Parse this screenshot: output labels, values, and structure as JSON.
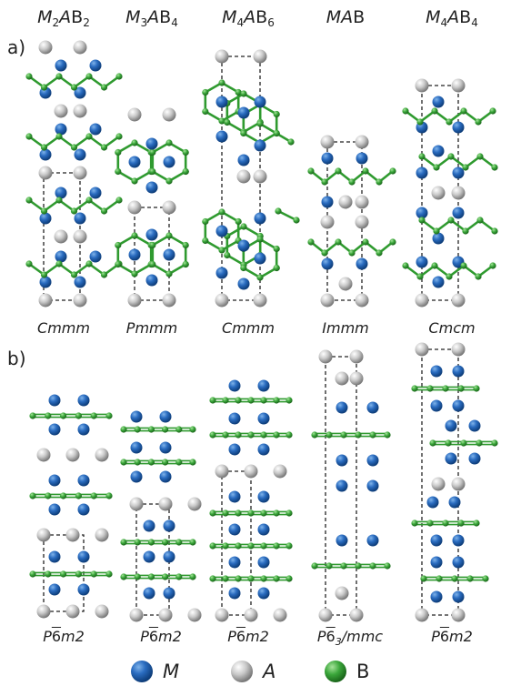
{
  "formulas": [
    {
      "M": "M",
      "msub": "2",
      "A": "A",
      "B": "B",
      "bsub": "2"
    },
    {
      "M": "M",
      "msub": "3",
      "A": "A",
      "B": "B",
      "bsub": "4"
    },
    {
      "M": "M",
      "msub": "4",
      "A": "A",
      "B": "B",
      "bsub": "6"
    },
    {
      "M": "M",
      "msub": "",
      "A": "A",
      "B": "B",
      "bsub": ""
    },
    {
      "M": "M",
      "msub": "4",
      "A": "A",
      "B": "B",
      "bsub": "4"
    }
  ],
  "panels": {
    "a": "a)",
    "b": "b)"
  },
  "space_groups_a": [
    "Cmmm",
    "Pmmm",
    "Cmmm",
    "Immm",
    "Cmcm"
  ],
  "space_groups_b": [
    {
      "pre": "P",
      "bar": "6",
      "post": "m2"
    },
    {
      "pre": "P",
      "bar": "6",
      "post": "m2"
    },
    {
      "pre": "P",
      "bar": "6",
      "post": "m2"
    },
    {
      "pre": "P",
      "bar": "6",
      "sub": "3",
      "post": "/mmc"
    },
    {
      "pre": "P",
      "bar": "6",
      "post": "m2"
    }
  ],
  "legend": [
    {
      "symbol": "M",
      "color": "#1f5fae"
    },
    {
      "symbol": "A",
      "color": "#9a9a9a"
    },
    {
      "symbol": "B",
      "color": "#2f9a2f"
    }
  ],
  "colors": {
    "M": "#1f5fae",
    "A": "#9a9a9a",
    "B": "#2f9a2f"
  }
}
